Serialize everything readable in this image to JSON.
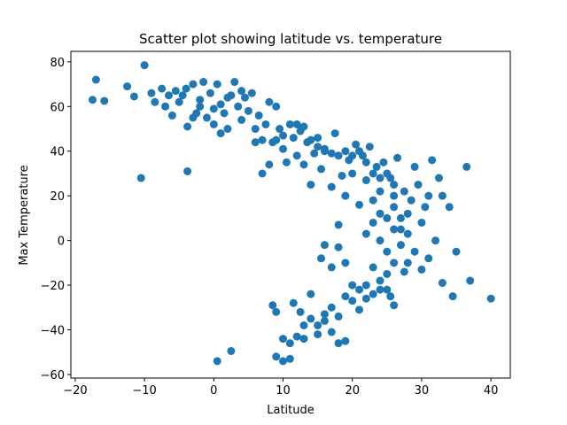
{
  "chart_data": {
    "type": "scatter",
    "title": "Scatter plot showing latitude vs. temperature",
    "x_label": "Latitude",
    "y_label": "Max Temperature",
    "color": "#1f77b4",
    "grid": false,
    "xlim": [
      -20.63,
      42.8
    ],
    "ylim": [
      -61.6,
      84.7
    ],
    "xticks": [
      {
        "value": -20,
        "label": "−20"
      },
      {
        "value": -10,
        "label": "−10"
      },
      0,
      10,
      20,
      30,
      40
    ],
    "yticks": [
      {
        "value": -60,
        "label": "−60"
      },
      {
        "value": -40,
        "label": "−40"
      },
      {
        "value": -20,
        "label": "−20"
      },
      0,
      20,
      40,
      60,
      80
    ],
    "x": [
      -17,
      -17.5,
      -15.8,
      -12.5,
      -11.5,
      -10,
      -9,
      -8.5,
      -7.5,
      -7,
      -6.5,
      -6,
      -5.5,
      -5,
      -4.5,
      -4,
      -3.8,
      -3.8,
      -3,
      -2.5,
      -2,
      -1.5,
      -1,
      -0.5,
      0,
      0.5,
      1,
      1.5,
      2,
      2.5,
      3,
      3.5,
      4,
      4.5,
      5,
      5.5,
      6,
      6.5,
      7,
      7.5,
      7,
      8,
      8.5,
      9,
      9.5,
      10,
      10.5,
      11,
      11.5,
      12,
      12.5,
      13,
      13.5,
      14,
      14.5,
      15,
      15.5,
      16,
      17,
      17.5,
      18,
      18.5,
      19,
      19.5,
      20,
      20.5,
      21,
      21.5,
      22,
      22.5,
      23,
      23.5,
      24,
      24.5,
      25,
      25.5,
      26,
      26.5,
      27,
      27.5,
      28,
      28.5,
      29,
      29.5,
      30,
      30.5,
      31,
      31.5,
      32,
      32.5,
      33,
      34,
      35,
      36.5,
      37,
      40,
      34.5,
      33,
      31,
      30,
      24,
      25,
      26,
      27,
      28,
      26,
      27,
      25,
      24,
      28,
      29,
      26,
      27.5,
      25.5,
      26,
      24,
      23,
      22,
      21,
      20,
      19,
      18,
      17,
      16,
      15,
      14,
      13,
      12,
      11,
      10,
      10,
      9,
      11,
      8.5,
      9,
      11.5,
      12.5,
      13,
      14,
      15,
      16,
      17,
      18,
      19,
      19,
      18,
      17,
      16,
      15.5,
      18,
      0.5,
      2.5,
      -10.5,
      22,
      23,
      24,
      25,
      23,
      21,
      22,
      20,
      0,
      1,
      2,
      -2,
      -3,
      4,
      6,
      8,
      9,
      10,
      12,
      13,
      14,
      15,
      16,
      17,
      19,
      20,
      21,
      22,
      23,
      24,
      25,
      26
    ],
    "values": [
      72,
      63,
      62.5,
      69,
      64.5,
      78.5,
      66,
      62,
      68,
      60,
      65,
      56,
      67,
      62,
      65,
      68,
      51,
      31,
      70,
      57,
      60,
      71,
      55,
      66,
      52,
      70,
      61,
      57,
      50,
      65,
      71,
      60,
      54,
      64,
      58,
      66,
      50,
      56,
      45,
      52,
      30,
      62,
      44,
      60,
      50,
      41,
      35,
      52,
      46,
      38,
      49,
      34,
      44,
      25,
      39,
      42,
      32,
      40,
      24,
      48,
      38,
      29,
      20,
      36,
      30,
      43,
      16,
      38,
      27,
      42,
      18,
      33,
      22,
      35,
      10,
      28,
      15,
      37,
      5,
      22,
      12,
      18,
      33,
      25,
      8,
      15,
      20,
      36,
      0,
      28,
      20,
      15,
      -5,
      33,
      -18,
      -26,
      -25,
      -19,
      -8,
      -13,
      0,
      -5,
      5,
      -2,
      3,
      -10,
      10,
      -15,
      -18,
      -10,
      -5,
      20,
      -14,
      -25,
      -29,
      -22,
      -24,
      -26,
      -22,
      -27,
      -25,
      -34,
      -30,
      -36,
      -38,
      -35,
      -38,
      -43,
      -46,
      -44,
      -54,
      -52,
      -53,
      -29,
      -32,
      -28,
      -32,
      -44,
      -24,
      -42,
      -33,
      -41,
      -46,
      -45,
      -10,
      -3,
      -12,
      -2,
      -8,
      7,
      -54,
      -49.5,
      28,
      3,
      8,
      12,
      -22,
      -12,
      -31,
      -20,
      -20,
      59,
      48,
      64,
      63,
      55,
      67,
      44,
      34,
      45,
      47,
      52,
      51,
      45,
      46,
      41,
      39,
      40,
      38,
      40,
      35,
      30,
      28,
      30,
      25
    ]
  }
}
